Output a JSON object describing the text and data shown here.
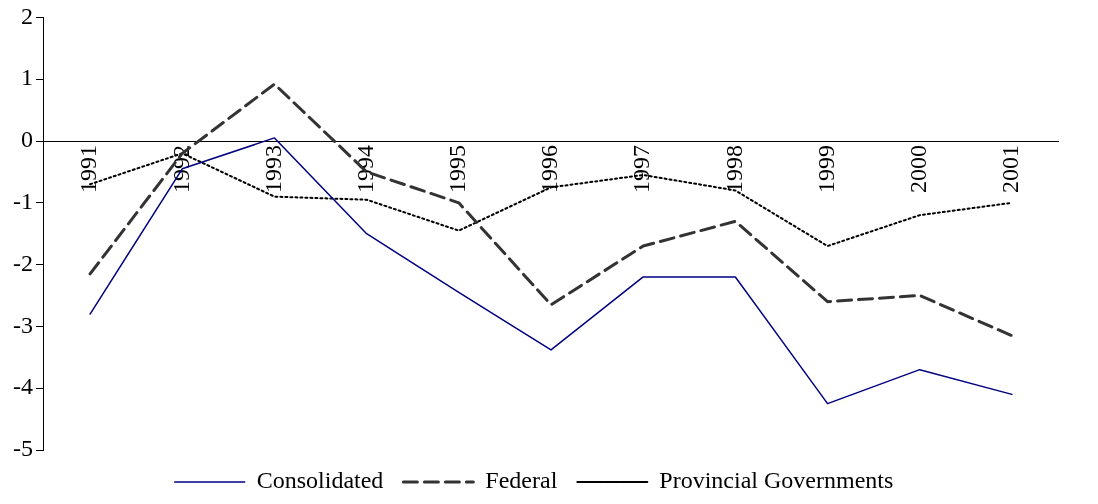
{
  "chart_data": {
    "type": "line",
    "categories": [
      "1991",
      "1992",
      "1993",
      "1994",
      "1995",
      "1996",
      "1997",
      "1998",
      "1999",
      "2000",
      "2001"
    ],
    "series": [
      {
        "name": "Consolidated",
        "color": "#000080",
        "line_style": "solid",
        "values": [
          -2.8,
          -0.45,
          0.05,
          -1.5,
          -2.45,
          -3.38,
          -2.2,
          -2.2,
          -4.25,
          -3.7,
          -4.1
        ]
      },
      {
        "name": "Federal",
        "color": "#333333",
        "line_style": "dashed",
        "values": [
          -2.15,
          -0.2,
          0.92,
          -0.5,
          -1.0,
          -2.65,
          -1.7,
          -1.3,
          -2.6,
          -2.5,
          -3.15
        ]
      },
      {
        "name": "Provincial Governments",
        "color": "#000000",
        "line_style": "dotted",
        "values": [
          -0.7,
          -0.2,
          -0.9,
          -0.95,
          -1.45,
          -0.75,
          -0.55,
          -0.8,
          -1.7,
          -1.2,
          -1.0
        ]
      }
    ],
    "ylim": [
      -5,
      2
    ],
    "yticks": [
      -5,
      -4,
      -3,
      -2,
      -1,
      0,
      1,
      2
    ],
    "legend": "bottom",
    "marker": "none"
  }
}
